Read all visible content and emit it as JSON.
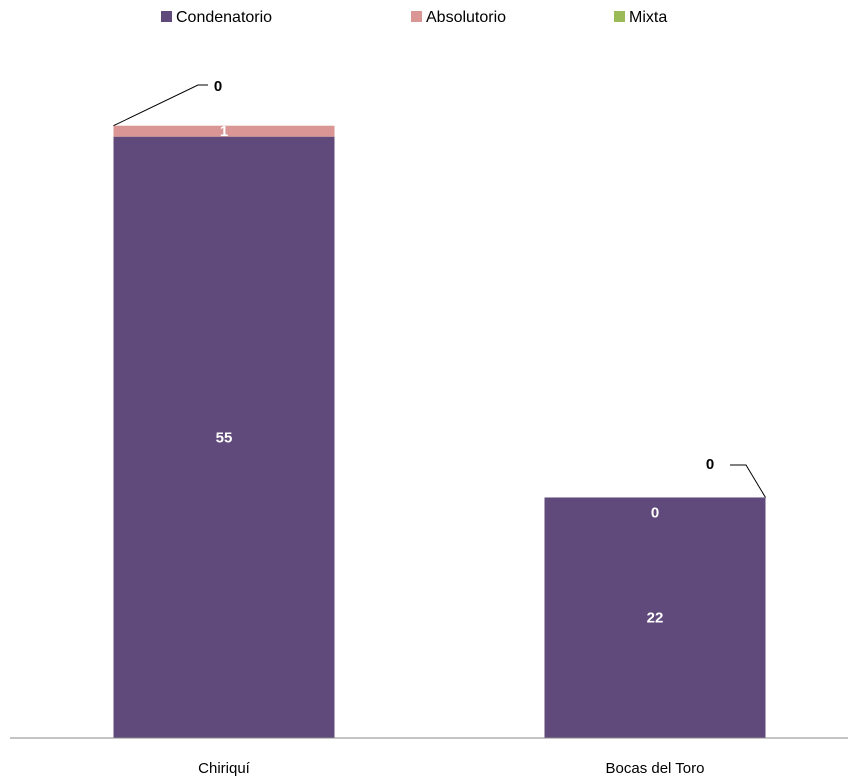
{
  "chart_data": {
    "type": "bar",
    "stacked": true,
    "categories": [
      "Chiriquí",
      "Bocas del Toro"
    ],
    "series": [
      {
        "name": "Condenatorio",
        "color": "#604A7B",
        "values": [
          55,
          22
        ],
        "labels": [
          "55",
          "22"
        ],
        "label_color": "#ffffff"
      },
      {
        "name": "Absolutorio",
        "color": "#D99694",
        "values": [
          1,
          0
        ],
        "labels": [
          "1",
          "0"
        ],
        "label_color": "#ffffff"
      },
      {
        "name": "Mixta",
        "color": "#9BBB59",
        "values": [
          0,
          0
        ],
        "labels": [
          "0",
          "0"
        ],
        "label_color": "#000000"
      }
    ],
    "ylim": [
      0,
      60
    ],
    "legend": "top",
    "grid": false,
    "title": "",
    "xlabel": "",
    "ylabel": ""
  }
}
